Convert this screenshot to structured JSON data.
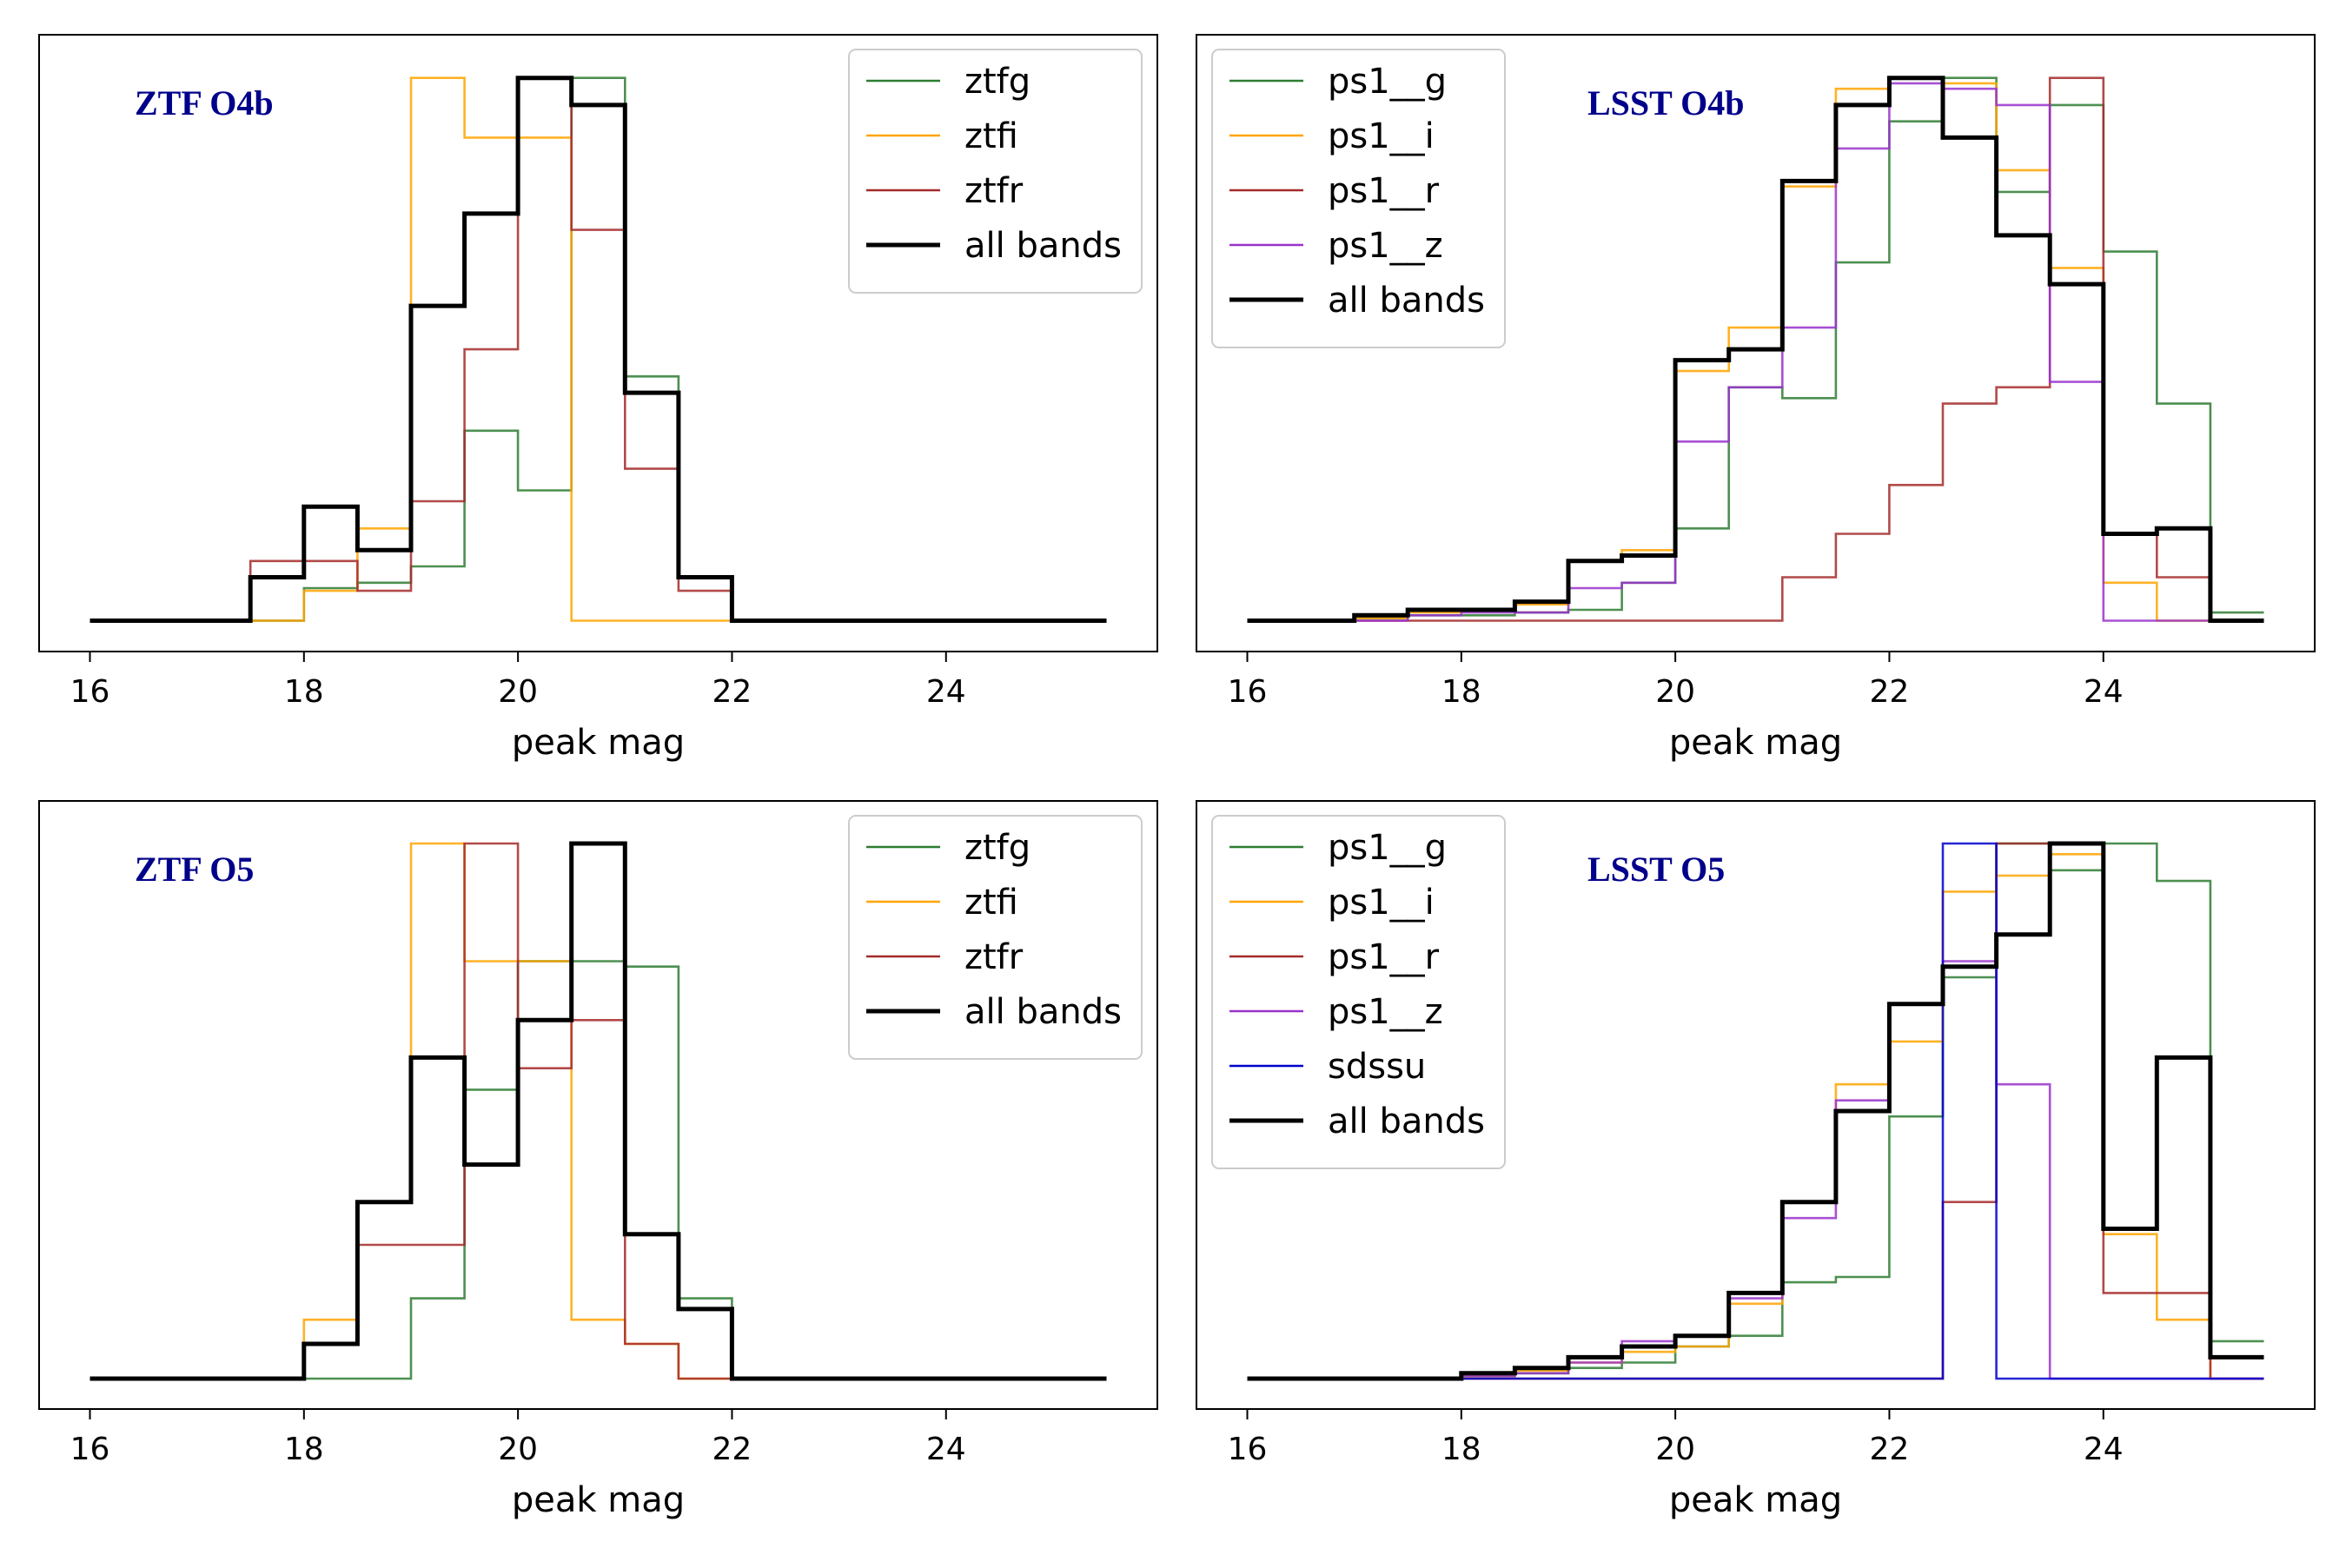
{
  "chart_data": [
    {
      "type": "histogram",
      "title": "ZTF O4b",
      "xlabel": "peak mag",
      "xlim": [
        16,
        25.5
      ],
      "xticks": [
        "16",
        "18",
        "20",
        "22",
        "24"
      ],
      "yticks_visible": false,
      "legend_position": "top-right",
      "bin_edges": [
        16,
        16.5,
        17,
        17.5,
        18,
        18.5,
        19,
        19.5,
        20,
        20.5,
        21,
        21.5,
        22,
        22.5,
        23,
        23.5,
        24,
        24.5,
        25,
        25.5
      ],
      "series": [
        {
          "name": "ztfg",
          "color": "#2e7d32",
          "values": [
            0,
            0,
            0,
            0,
            0.06,
            0.07,
            0.1,
            0.35,
            0.24,
            1.0,
            0.45,
            0.08,
            0,
            0,
            0,
            0,
            0,
            0,
            0
          ]
        },
        {
          "name": "ztfi",
          "color": "#ffa500",
          "values": [
            0,
            0,
            0,
            0,
            0.055,
            0.17,
            1.0,
            0.89,
            0.89,
            0,
            0,
            0,
            0,
            0,
            0,
            0,
            0,
            0,
            0
          ]
        },
        {
          "name": "ztfr",
          "color": "#a52a2a",
          "values": [
            0,
            0,
            0,
            0.11,
            0.11,
            0.055,
            0.22,
            0.5,
            1.0,
            0.72,
            0.28,
            0.055,
            0,
            0,
            0,
            0,
            0,
            0,
            0
          ]
        },
        {
          "name": "all bands",
          "color": "#000000",
          "values": [
            0,
            0,
            0,
            0.08,
            0.21,
            0.13,
            0.58,
            0.75,
            1.0,
            0.95,
            0.42,
            0.08,
            0,
            0,
            0,
            0,
            0,
            0,
            0
          ]
        }
      ]
    },
    {
      "type": "histogram",
      "title": "LSST O4b",
      "xlabel": "peak mag",
      "xlim": [
        16,
        25.5
      ],
      "xticks": [
        "16",
        "18",
        "20",
        "22",
        "24"
      ],
      "yticks_visible": false,
      "legend_position": "top-left",
      "bin_edges": [
        16,
        16.5,
        17,
        17.5,
        18,
        18.5,
        19,
        19.5,
        20,
        20.5,
        21,
        21.5,
        22,
        22.5,
        23,
        23.5,
        24,
        24.5,
        25,
        25.5
      ],
      "series": [
        {
          "name": "ps1__g",
          "color": "#2e7d32",
          "values": [
            0,
            0,
            0.005,
            0.01,
            0.01,
            0.015,
            0.02,
            0.07,
            0.17,
            0.43,
            0.41,
            0.66,
            0.92,
            1.0,
            0.79,
            0.95,
            0.68,
            0.4,
            0.015
          ]
        },
        {
          "name": "ps1__i",
          "color": "#ffa500",
          "values": [
            0,
            0,
            0.005,
            0.015,
            0.02,
            0.03,
            0.11,
            0.13,
            0.46,
            0.54,
            0.8,
            0.98,
            1.0,
            0.99,
            0.83,
            0.65,
            0.07,
            0,
            0
          ]
        },
        {
          "name": "ps1__r",
          "color": "#a52a2a",
          "values": [
            0,
            0,
            0,
            0,
            0,
            0,
            0,
            0,
            0,
            0,
            0.08,
            0.16,
            0.25,
            0.4,
            0.43,
            1.0,
            0.16,
            0.08,
            0
          ]
        },
        {
          "name": "ps1__z",
          "color": "#9932cc",
          "values": [
            0,
            0,
            0,
            0.01,
            0.015,
            0.015,
            0.06,
            0.07,
            0.33,
            0.43,
            0.54,
            0.87,
            0.99,
            0.98,
            0.95,
            0.44,
            0,
            0,
            0
          ]
        },
        {
          "name": "all bands",
          "color": "#000000",
          "values": [
            0,
            0,
            0.01,
            0.02,
            0.02,
            0.035,
            0.11,
            0.12,
            0.48,
            0.5,
            0.81,
            0.95,
            1.0,
            0.89,
            0.71,
            0.62,
            0.16,
            0.17,
            0
          ]
        }
      ]
    },
    {
      "type": "histogram",
      "title": "ZTF O5",
      "xlabel": "peak mag",
      "xlim": [
        16,
        25.5
      ],
      "xticks": [
        "16",
        "18",
        "20",
        "22",
        "24"
      ],
      "yticks_visible": false,
      "legend_position": "top-right",
      "bin_edges": [
        16,
        16.5,
        17,
        17.5,
        18,
        18.5,
        19,
        19.5,
        20,
        20.5,
        21,
        21.5,
        22,
        22.5,
        23,
        23.5,
        24,
        24.5,
        25,
        25.5
      ],
      "series": [
        {
          "name": "ztfg",
          "color": "#2e7d32",
          "values": [
            0,
            0,
            0,
            0,
            0,
            0,
            0.15,
            0.54,
            0.78,
            0.78,
            0.77,
            0.15,
            0,
            0,
            0,
            0,
            0,
            0,
            0
          ]
        },
        {
          "name": "ztfi",
          "color": "#ffa500",
          "values": [
            0,
            0,
            0,
            0,
            0.11,
            0.33,
            1.0,
            0.78,
            0.78,
            0.11,
            0.065,
            0,
            0,
            0,
            0,
            0,
            0,
            0,
            0
          ]
        },
        {
          "name": "ztfr",
          "color": "#a52a2a",
          "values": [
            0,
            0,
            0,
            0,
            0.065,
            0.25,
            0.25,
            1.0,
            0.58,
            0.67,
            0.065,
            0,
            0,
            0,
            0,
            0,
            0,
            0,
            0
          ]
        },
        {
          "name": "all bands",
          "color": "#000000",
          "values": [
            0,
            0,
            0,
            0,
            0.065,
            0.33,
            0.6,
            0.4,
            0.67,
            1.0,
            0.27,
            0.13,
            0,
            0,
            0,
            0,
            0,
            0,
            0
          ]
        }
      ]
    },
    {
      "type": "histogram",
      "title": "LSST O5",
      "xlabel": "peak mag",
      "xlim": [
        16,
        25.5
      ],
      "xticks": [
        "16",
        "18",
        "20",
        "22",
        "24"
      ],
      "yticks_visible": false,
      "legend_position": "top-left",
      "bin_edges": [
        16,
        16.5,
        17,
        17.5,
        18,
        18.5,
        19,
        19.5,
        20,
        20.5,
        21,
        21.5,
        22,
        22.5,
        23,
        23.5,
        24,
        24.5,
        25,
        25.5
      ],
      "series": [
        {
          "name": "ps1__g",
          "color": "#2e7d32",
          "values": [
            0,
            0,
            0,
            0,
            0.005,
            0.01,
            0.02,
            0.03,
            0.06,
            0.08,
            0.18,
            0.19,
            0.49,
            0.75,
            1.0,
            0.95,
            1.0,
            0.93,
            0.07
          ]
        },
        {
          "name": "ps1__i",
          "color": "#ffa500",
          "values": [
            0,
            0,
            0,
            0,
            0.005,
            0.015,
            0.03,
            0.05,
            0.06,
            0.14,
            0.33,
            0.55,
            0.63,
            0.91,
            0.94,
            0.98,
            0.27,
            0.11,
            0
          ]
        },
        {
          "name": "ps1__r",
          "color": "#a52a2a",
          "values": [
            0,
            0,
            0,
            0,
            0,
            0,
            0,
            0,
            0,
            0,
            0,
            0,
            0,
            0.33,
            1.0,
            1.0,
            0.16,
            0.16,
            0
          ]
        },
        {
          "name": "ps1__z",
          "color": "#9932cc",
          "values": [
            0,
            0,
            0,
            0,
            0.005,
            0.01,
            0.03,
            0.07,
            0.08,
            0.15,
            0.3,
            0.52,
            0.7,
            0.78,
            0.55,
            0,
            0,
            0,
            0
          ]
        },
        {
          "name": "sdssu",
          "color": "#0000cd",
          "values": [
            0,
            0,
            0,
            0,
            0,
            0,
            0,
            0,
            0,
            0,
            0,
            0,
            0,
            1.0,
            0,
            0,
            0,
            0,
            0
          ]
        },
        {
          "name": "all bands",
          "color": "#000000",
          "values": [
            0,
            0,
            0,
            0,
            0.01,
            0.02,
            0.04,
            0.06,
            0.08,
            0.16,
            0.33,
            0.5,
            0.7,
            0.77,
            0.83,
            1.0,
            0.28,
            0.6,
            0.04
          ]
        }
      ]
    }
  ]
}
